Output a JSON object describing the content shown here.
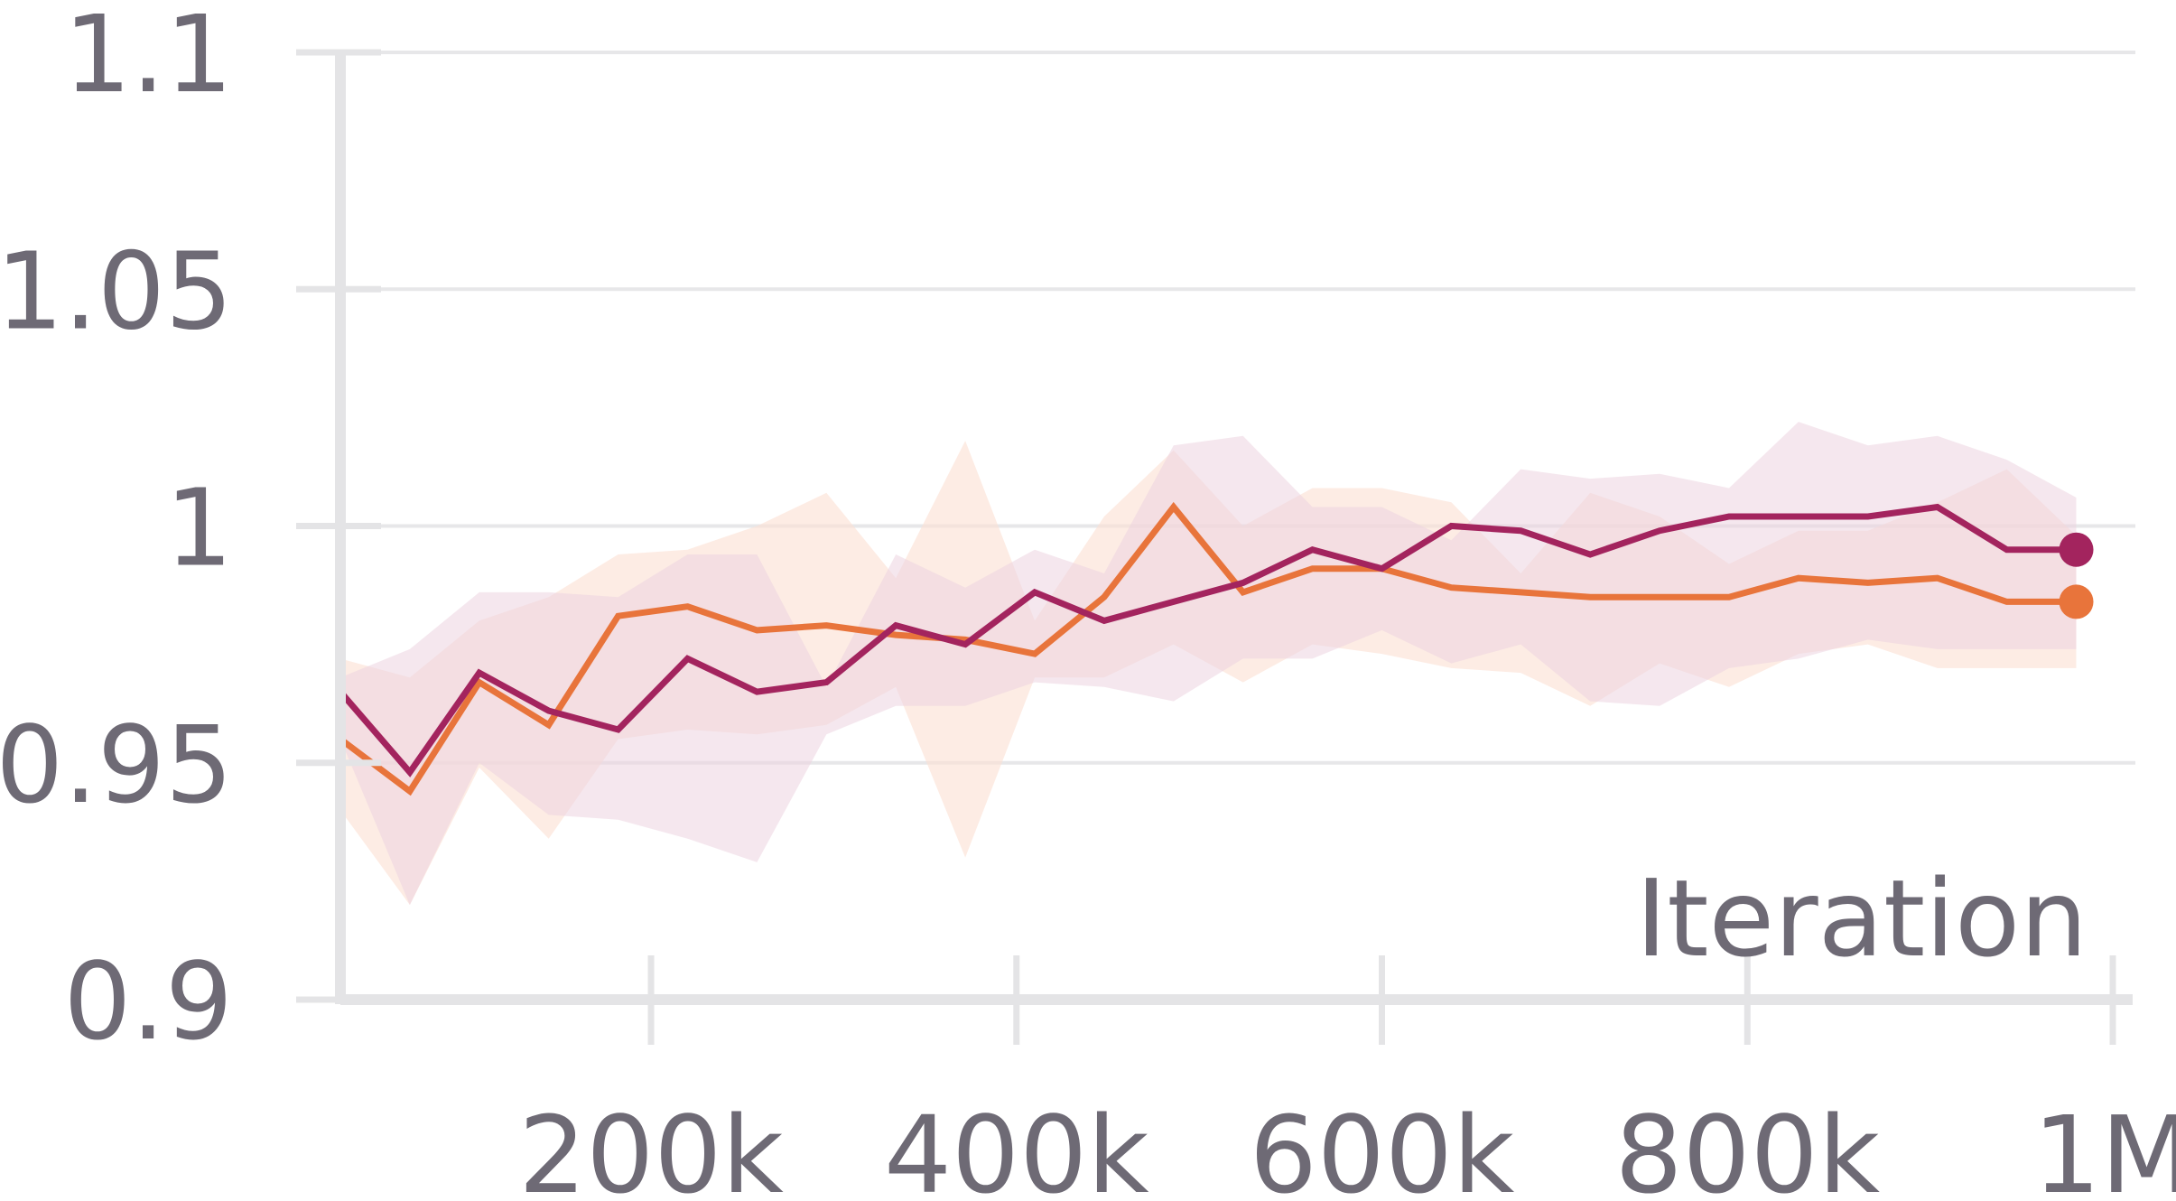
{
  "chart_data": {
    "type": "line",
    "title": "",
    "xlabel": "Iteration",
    "ylabel": "",
    "xlim": [
      30000,
      1000000
    ],
    "ylim": [
      0.9,
      1.1
    ],
    "grid": "horizontal",
    "x_ticks": [
      200000,
      400000,
      600000,
      800000,
      1000000
    ],
    "x_tick_labels": [
      "200k",
      "400k",
      "600k",
      "800k",
      "1M"
    ],
    "y_ticks": [
      0.9,
      0.95,
      1.0,
      1.05,
      1.1
    ],
    "y_tick_labels": [
      "0.9",
      "0.95",
      "1",
      "1.05",
      "1.1"
    ],
    "x": [
      30000,
      68000,
      106000,
      144000,
      182000,
      220000,
      258000,
      296000,
      334000,
      372000,
      410000,
      448000,
      486000,
      524000,
      562000,
      600000,
      638000,
      676000,
      714000,
      752000,
      790000,
      828000,
      866000,
      904000,
      942000,
      980000
    ],
    "series": [
      {
        "color": "#e8743b",
        "band_color": "#fbe1d3",
        "values": [
          0.955,
          0.944,
          0.967,
          0.958,
          0.981,
          0.983,
          0.978,
          0.979,
          0.977,
          0.976,
          0.973,
          0.985,
          1.004,
          0.986,
          0.991,
          0.991,
          0.987,
          0.986,
          0.985,
          0.985,
          0.985,
          0.989,
          0.988,
          0.989,
          0.984,
          0.984
        ],
        "lower": [
          0.94,
          0.92,
          0.949,
          0.934,
          0.955,
          0.957,
          0.956,
          0.958,
          0.966,
          0.93,
          0.968,
          0.968,
          0.975,
          0.967,
          0.975,
          0.973,
          0.97,
          0.969,
          0.962,
          0.971,
          0.966,
          0.973,
          0.975,
          0.97,
          0.97,
          0.97
        ],
        "upper": [
          0.972,
          0.968,
          0.98,
          0.985,
          0.994,
          0.995,
          1.0,
          1.007,
          0.989,
          1.018,
          0.98,
          1.002,
          1.016,
          1.0,
          1.008,
          1.008,
          1.005,
          0.99,
          1.007,
          1.002,
          0.992,
          0.999,
          0.999,
          1.005,
          1.012,
          0.998
        ]
      },
      {
        "color": "#a3245e",
        "band_color": "#ecd3e0",
        "values": [
          0.965,
          0.948,
          0.969,
          0.961,
          0.957,
          0.972,
          0.965,
          0.967,
          0.979,
          0.975,
          0.986,
          0.98,
          0.984,
          0.988,
          0.995,
          0.991,
          1.0,
          0.999,
          0.994,
          0.999,
          1.002,
          1.002,
          1.002,
          1.004,
          0.995,
          0.995
        ],
        "lower": [
          0.955,
          0.92,
          0.95,
          0.939,
          0.938,
          0.934,
          0.929,
          0.956,
          0.962,
          0.962,
          0.967,
          0.966,
          0.963,
          0.972,
          0.972,
          0.978,
          0.971,
          0.975,
          0.963,
          0.962,
          0.97,
          0.972,
          0.976,
          0.974,
          0.974,
          0.974
        ],
        "upper": [
          0.968,
          0.974,
          0.986,
          0.986,
          0.985,
          0.994,
          0.994,
          0.966,
          0.994,
          0.987,
          0.995,
          0.99,
          1.017,
          1.019,
          1.004,
          1.004,
          0.997,
          1.012,
          1.01,
          1.011,
          1.008,
          1.022,
          1.017,
          1.019,
          1.014,
          1.006
        ]
      }
    ]
  }
}
